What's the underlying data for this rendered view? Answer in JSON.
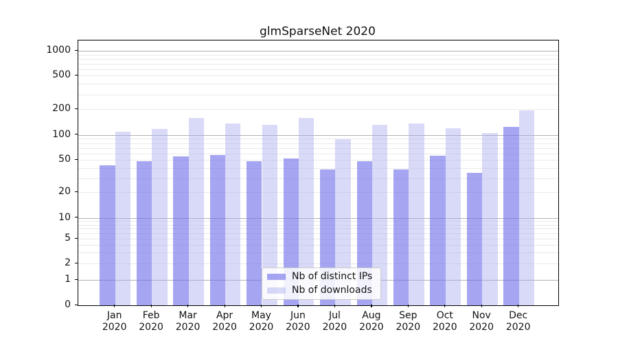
{
  "title": "glmSparseNet 2020",
  "chart_data": {
    "type": "bar",
    "title": "glmSparseNet 2020",
    "categories": [
      "Jan",
      "Feb",
      "Mar",
      "Apr",
      "May",
      "Jun",
      "Jul",
      "Aug",
      "Sep",
      "Oct",
      "Nov",
      "Dec"
    ],
    "year": "2020",
    "series": [
      {
        "name": "Nb of distinct IPs",
        "color": "rgba(110,110,232,0.62)",
        "values": [
          43,
          48,
          55,
          58,
          48,
          52,
          38,
          48,
          38,
          56,
          35,
          124
        ]
      },
      {
        "name": "Nb of downloads",
        "color": "rgba(170,170,240,0.45)",
        "values": [
          110,
          118,
          157,
          136,
          131,
          158,
          89,
          131,
          136,
          119,
          105,
          195
        ]
      }
    ],
    "xlabel": "",
    "ylabel": "",
    "yticks": [
      0,
      1,
      2,
      5,
      10,
      20,
      50,
      100,
      200,
      500,
      1000
    ],
    "ylim": [
      0,
      1400
    ],
    "yscale": "log-like",
    "grid": true,
    "legend_position": "lower center",
    "colors": {
      "major_gridline": "#b0b0b0",
      "minor_gridline": "#e9e9e9",
      "spine": "#000000",
      "text": "#111111"
    }
  }
}
